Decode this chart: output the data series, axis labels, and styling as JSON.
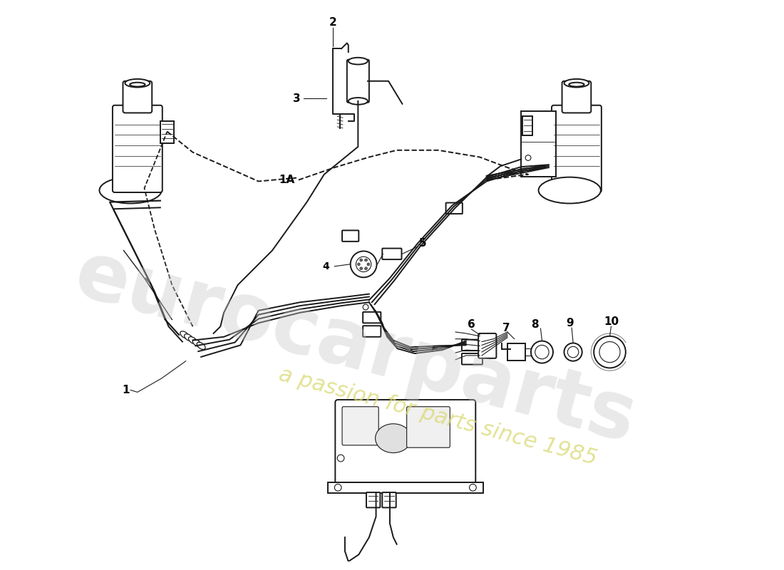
{
  "bg_color": "#ffffff",
  "line_color": "#1a1a1a",
  "watermark_main": "eurocarparts",
  "watermark_sub": "a passion for parts since 1985",
  "wm_main_color": "#c8c8c8",
  "wm_sub_color": "#d8d870",
  "wm_main_alpha": 0.4,
  "wm_sub_alpha": 0.75,
  "wm_main_size": 80,
  "wm_sub_size": 22,
  "wm_main_rotation": -15,
  "wm_sub_rotation": -15
}
